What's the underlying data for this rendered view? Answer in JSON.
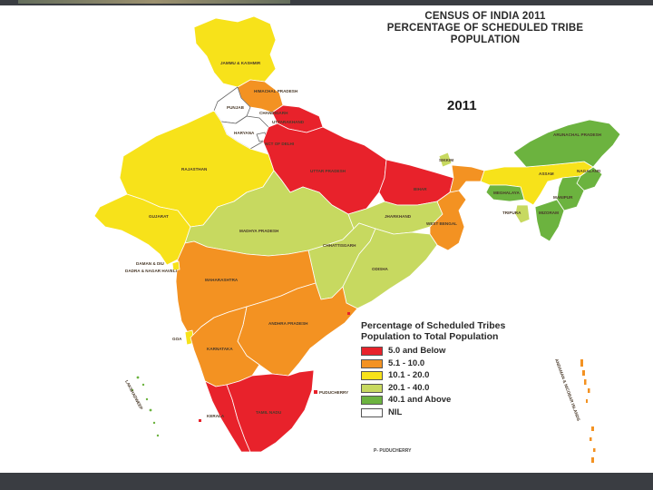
{
  "title_lines": [
    "CENSUS OF INDIA 2011",
    "PERCENTAGE OF SCHEDULED TRIBE",
    "POPULATION"
  ],
  "year": "2011",
  "legend": {
    "title_lines": [
      "Percentage of Scheduled Tribes",
      "Population  to Total Population"
    ],
    "items": [
      {
        "label": "5.0 and Below",
        "color": "#e8222b"
      },
      {
        "label": "5.1 - 10.0",
        "color": "#f39222"
      },
      {
        "label": "10.1 - 20.0",
        "color": "#f7e21a"
      },
      {
        "label": "20.1 - 40.0",
        "color": "#c7d960"
      },
      {
        "label": "40.1 and Above",
        "color": "#6cb33f"
      },
      {
        "label": "NIL",
        "color": "#ffffff"
      }
    ]
  },
  "states": {
    "jk": "JAMMU & KASHMIR",
    "hp": "HIMACHAL PRADESH",
    "punjab": "PUNJAB",
    "chandigarh": "CHANDIGARH",
    "uttarakhand": "UTTARAKHAND",
    "haryana": "HARYANA",
    "delhi": "NCT OF DELHI",
    "rajasthan": "RAJASTHAN",
    "up": "UTTAR PRADESH",
    "bihar": "BIHAR",
    "sikkim": "SIKKIM",
    "arunachal": "ARUNACHAL PRADESH",
    "assam": "ASSAM",
    "nagaland": "NAGALAND",
    "meghalaya": "MEGHALAYA",
    "manipur": "MANIPUR",
    "tripura": "TRIPURA",
    "mizoram": "MIZORAM",
    "gujarat": "GUJARAT",
    "mp": "MADHYA PRADESH",
    "jharkhand": "JHARKHAND",
    "wb": "WEST BENGAL",
    "chhattisgarh": "CHHATTISGARH",
    "daman": "DAMAN & DIU",
    "dnh": "DADRA & NAGAR HAVELI",
    "maharashtra": "MAHARASHTRA",
    "odisha": "ODISHA",
    "ap": "ANDHRA PRADESH",
    "goa": "GOA",
    "karnataka": "KARNATAKA",
    "puducherry": "PUDUCHERRY",
    "kerala": "KERALA",
    "tn": "TAMIL NADU",
    "lakshadweep": "LAKSHADWEEP",
    "andaman": "ANDAMAN & NICOBAR ISLANDS"
  },
  "footnote": "P- PUDUCHERRY"
}
